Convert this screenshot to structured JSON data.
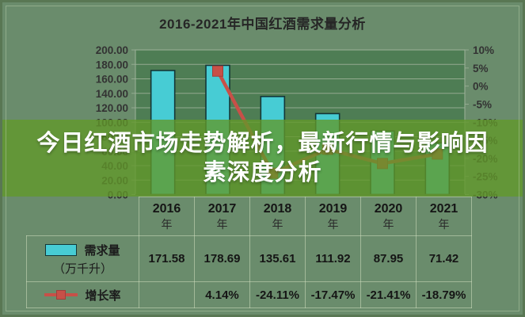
{
  "title": "2016-2021年中国红酒需求量分析",
  "overlay": {
    "headline": "今日红酒市场走势解析，最新行情与影响因素深度分析"
  },
  "chart_data": {
    "type": "bar",
    "title": "2016-2021年中国红酒需求量分析",
    "categories": [
      "2016",
      "2017",
      "2018",
      "2019",
      "2020",
      "2021"
    ],
    "category_suffix": "年",
    "series": [
      {
        "name": "需求量（万千升）",
        "type": "bar",
        "axis": "left",
        "values": [
          171.58,
          178.69,
          135.61,
          111.92,
          87.95,
          71.42
        ]
      },
      {
        "name": "增长率",
        "type": "line",
        "axis": "right",
        "values": [
          null,
          4.14,
          -24.11,
          -17.47,
          -21.41,
          -18.79
        ],
        "unit": "%"
      }
    ],
    "left_axis": {
      "min": 0,
      "max": 200,
      "ticks": [
        "200.00",
        "180.00",
        "160.00",
        "140.00",
        "120.00",
        "100.00",
        "80.00",
        "60.00",
        "40.00",
        "20.00",
        "0.00"
      ]
    },
    "right_axis": {
      "min": -30,
      "max": 10,
      "ticks": [
        "10%",
        "5%",
        "0%",
        "-5%",
        "-10%",
        "-15%",
        "-20%",
        "-25%",
        "-30%"
      ]
    },
    "grid": true,
    "legend_position": "table-bottom"
  },
  "table": {
    "year_suffix": "年",
    "years": [
      "2016",
      "2017",
      "2018",
      "2019",
      "2020",
      "2021"
    ],
    "rows": [
      {
        "legend": "需求量",
        "legend_sub": "（万千升）",
        "values": [
          "171.58",
          "178.69",
          "135.61",
          "111.92",
          "87.95",
          "71.42"
        ]
      },
      {
        "legend": "增长率",
        "values": [
          "",
          "4.14%",
          "-24.11%",
          "-17.47%",
          "-21.41%",
          "-18.79%"
        ]
      }
    ]
  },
  "colors": {
    "background": "#6a8c6c",
    "plot_background": "#4e7d54",
    "gridline": "#93aa90",
    "plot_border": "#9db29a",
    "bar_fill": "#47ccd4",
    "bar_stroke": "#143637",
    "line_color": "#c75048",
    "banner_green": "#61982a",
    "axis_text": "#333333",
    "banner_text": "#ffffff"
  }
}
